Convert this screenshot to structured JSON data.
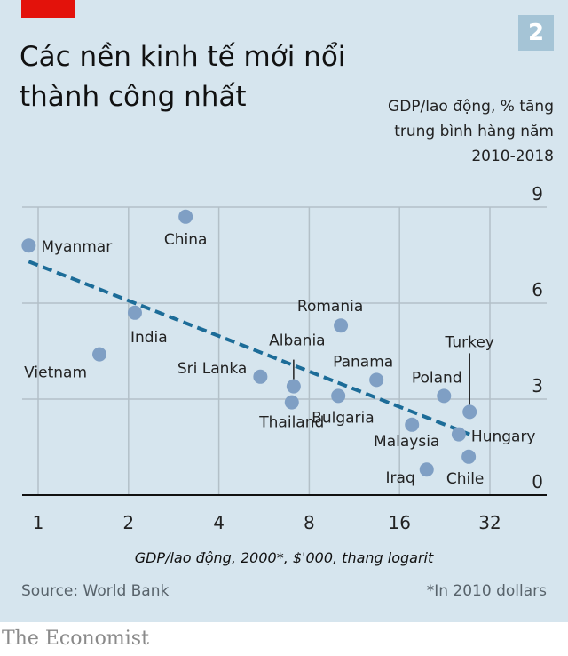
{
  "header": {
    "title_line1": "Các nền kinh tế mới nổi",
    "title_line2": "thành công nhất",
    "badge": "2",
    "subtitle_line1": "GDP/lao động, % tăng",
    "subtitle_line2": "trung bình hàng năm",
    "subtitle_line3": "2010-2018"
  },
  "footer": {
    "source": "Source: World Bank",
    "note": "*In 2010 dollars",
    "brand": "The Economist"
  },
  "colors": {
    "background": "#d6e5ee",
    "accent_red": "#e3120b",
    "point": "#7f9fc4",
    "trend": "#1c6c98",
    "grid": "#b3c0c8"
  },
  "chart_data": {
    "type": "scatter",
    "title": "Các nền kinh tế mới nổi thành công nhất",
    "xlabel": "GDP/lao động, 2000*, $'000, thang logarit",
    "ylabel": "GDP/lao động, % tăng trung bình hàng năm 2010-2018",
    "x_scale": "log2",
    "xlim": [
      0.85,
      48
    ],
    "ylim": [
      0,
      9
    ],
    "x_ticks": [
      1,
      2,
      4,
      8,
      16,
      32
    ],
    "x_tick_labels": [
      "1",
      "2",
      "4",
      "8",
      "16",
      "32"
    ],
    "y_ticks": [
      0,
      3,
      6,
      9
    ],
    "y_tick_labels": [
      "0",
      "3",
      "6",
      "9"
    ],
    "grid": true,
    "points": [
      {
        "name": "Myanmar",
        "x": 0.93,
        "y": 7.8
      },
      {
        "name": "China",
        "x": 3.1,
        "y": 8.7
      },
      {
        "name": "India",
        "x": 2.1,
        "y": 5.7
      },
      {
        "name": "Vietnam",
        "x": 1.6,
        "y": 4.4
      },
      {
        "name": "Sri Lanka",
        "x": 5.5,
        "y": 3.7
      },
      {
        "name": "Albania",
        "x": 7.1,
        "y": 3.4
      },
      {
        "name": "Thailand",
        "x": 7.0,
        "y": 2.9
      },
      {
        "name": "Romania",
        "x": 10.2,
        "y": 5.3
      },
      {
        "name": "Bulgaria",
        "x": 10.0,
        "y": 3.1
      },
      {
        "name": "Panama",
        "x": 13.4,
        "y": 3.6
      },
      {
        "name": "Poland",
        "x": 22.5,
        "y": 3.1
      },
      {
        "name": "Turkey",
        "x": 27.4,
        "y": 2.6
      },
      {
        "name": "Malaysia",
        "x": 17.6,
        "y": 2.2
      },
      {
        "name": "Hungary",
        "x": 25.2,
        "y": 1.9
      },
      {
        "name": "Chile",
        "x": 27.2,
        "y": 1.2
      },
      {
        "name": "Iraq",
        "x": 19.7,
        "y": 0.8
      }
    ],
    "trend_line": {
      "style": "dashed",
      "start": {
        "x": 0.93,
        "y": 7.3
      },
      "end": {
        "x": 27.4,
        "y": 1.9
      }
    }
  }
}
